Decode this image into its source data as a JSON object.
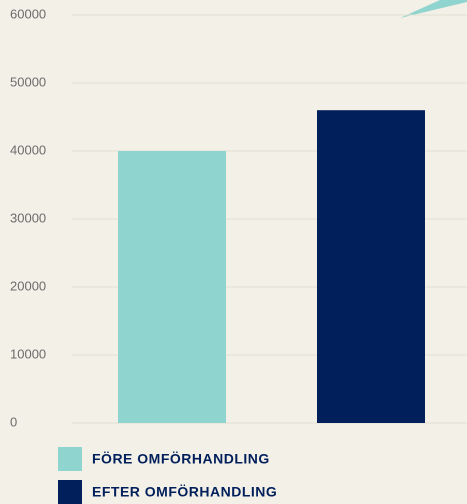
{
  "chart_data": {
    "type": "bar",
    "series": [
      {
        "name": "FÖRE OMFÖRHANDLING",
        "color": "#8fd4ce",
        "values": [
          40000
        ]
      },
      {
        "name": "EFTER OMFÖRHANDLING",
        "color": "#001f5b",
        "values": [
          46000
        ]
      }
    ],
    "ylim": [
      0,
      60000
    ],
    "yticks": [
      0,
      10000,
      20000,
      30000,
      40000,
      50000,
      60000
    ],
    "grid": true
  }
}
